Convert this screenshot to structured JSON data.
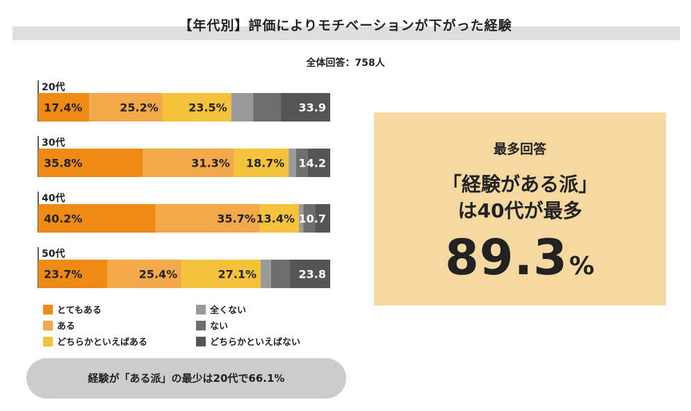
{
  "title": "【年代別】評価によりモチベーションが下がった経験",
  "subtitle": "全体回答：758人",
  "colors": {
    "totemo_aru": "#ef8a14",
    "aru": "#f3a84a",
    "dochira_aru": "#f5c33b",
    "mattaku_nai": "#9a9a9a",
    "nai": "#6e6e6e",
    "dochira_nai": "#555555"
  },
  "chart_data": {
    "type": "bar",
    "orientation": "horizontal",
    "stacked": true,
    "normalized": true,
    "categories": [
      "20代",
      "30代",
      "40代",
      "50代"
    ],
    "series": [
      {
        "name": "とてもある",
        "color": "#ef8a14",
        "values": [
          17.4,
          35.8,
          40.2,
          23.7
        ],
        "labels": [
          "17.4%",
          "35.8%",
          "40.2%",
          "23.7%"
        ]
      },
      {
        "name": "ある",
        "color": "#f3a84a",
        "values": [
          25.2,
          31.3,
          35.7,
          25.4
        ],
        "labels": [
          "25.2%",
          "31.3%",
          "35.7%",
          "25.4%"
        ]
      },
      {
        "name": "どちらかといえばある",
        "color": "#f5c33b",
        "values": [
          23.5,
          18.7,
          13.4,
          27.1
        ],
        "labels": [
          "23.5%",
          "18.7%",
          "13.4%",
          "27.1%"
        ]
      },
      {
        "name": "全くない",
        "color": "#9a9a9a",
        "values": [
          7.5,
          2.5,
          1.5,
          3.5
        ],
        "labels": [
          "",
          "",
          "",
          ""
        ]
      },
      {
        "name": "ない",
        "color": "#6e6e6e",
        "values": [
          9.5,
          4.0,
          4.0,
          6.5
        ],
        "labels": [
          "",
          "",
          "",
          ""
        ]
      },
      {
        "name": "どちらかといえばない",
        "color": "#555555",
        "values": [
          16.9,
          7.7,
          5.2,
          13.8
        ],
        "labels": [
          "",
          "",
          "",
          ""
        ]
      }
    ],
    "segment_totals": {
      "series_group": [
        "全くない",
        "ない",
        "どちらかといえばない"
      ],
      "labels": [
        "33.9",
        "14.2",
        "10.7",
        "23.8"
      ]
    }
  },
  "legend": {
    "items": [
      {
        "label": "とてもある",
        "color": "#ef8a14"
      },
      {
        "label": "ある",
        "color": "#f3a84a"
      },
      {
        "label": "どちらかといえばある",
        "color": "#f5c33b"
      },
      {
        "label": "全くない",
        "color": "#9a9a9a"
      },
      {
        "label": "ない",
        "color": "#6e6e6e"
      },
      {
        "label": "どちらかといえばない",
        "color": "#555555"
      }
    ]
  },
  "summary": "経験が「ある派」の最少は20代で66.1%",
  "callout": {
    "label": "最多回答",
    "line1": "「経験がある派」",
    "line2": "は40代が最多",
    "value": "89.3",
    "unit": "%"
  }
}
